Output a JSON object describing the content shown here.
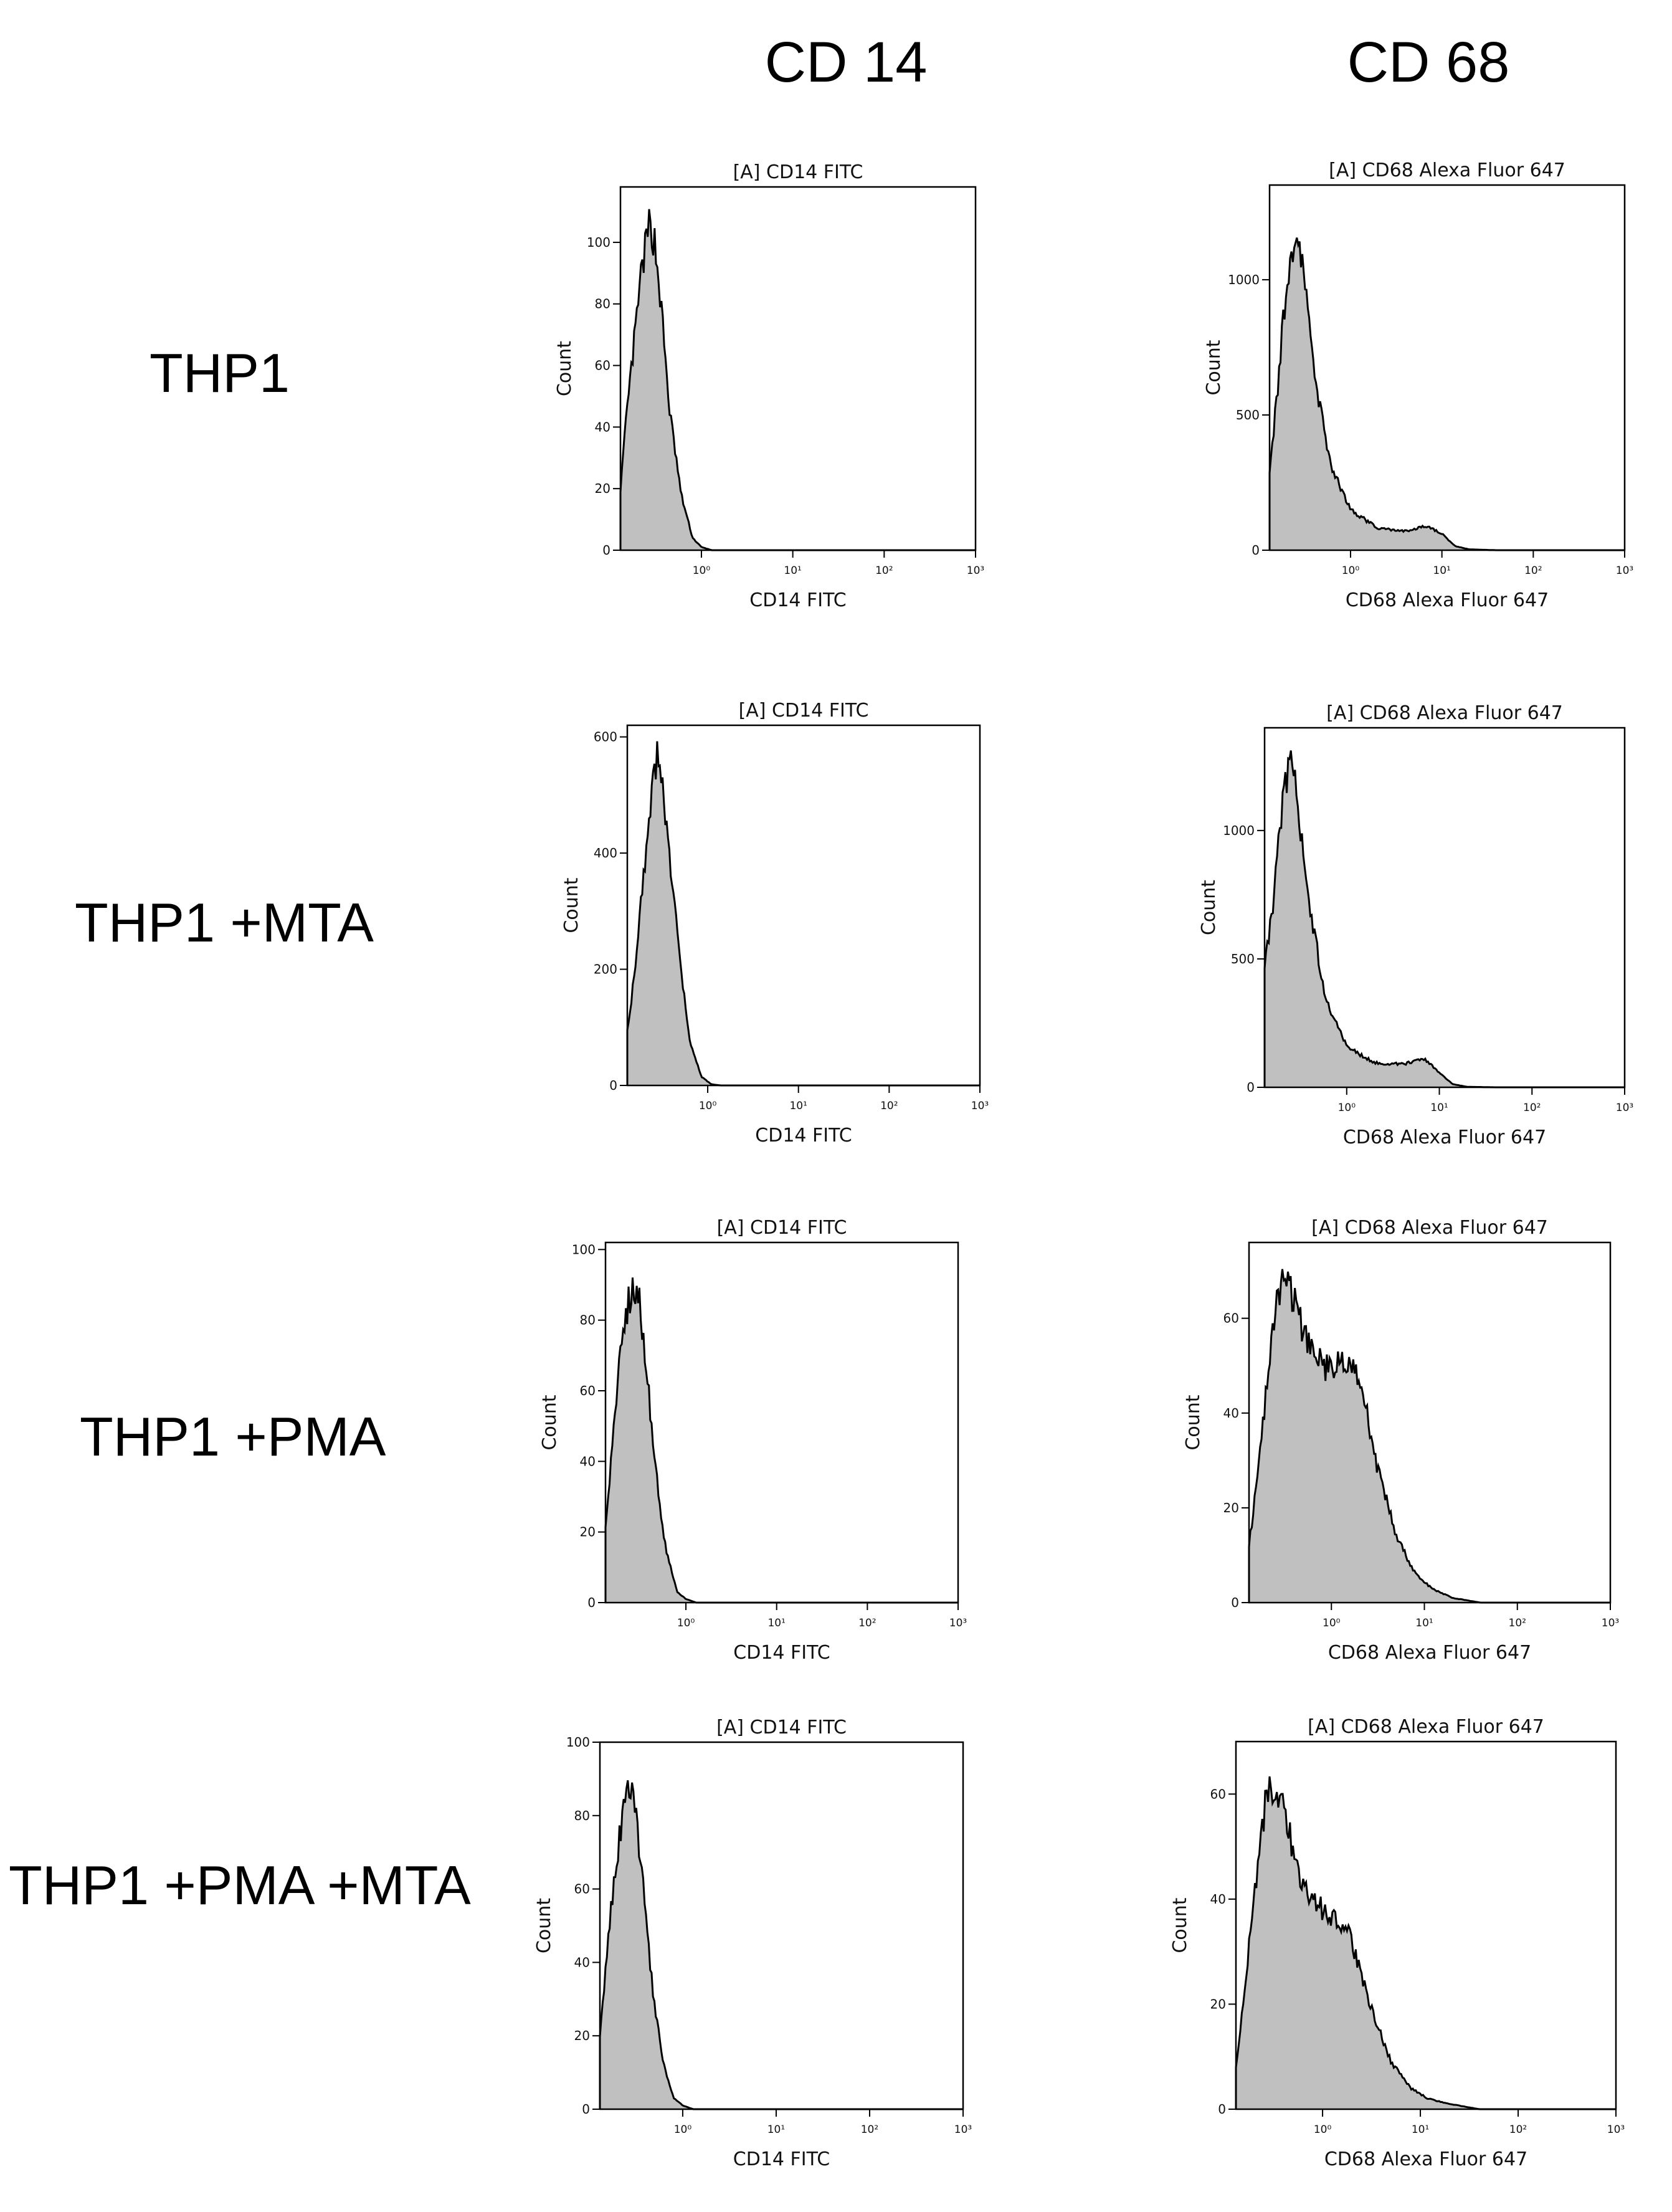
{
  "column_headers": [
    "CD 14",
    "CD 68"
  ],
  "row_labels": [
    "THP1",
    "THP1 +MTA",
    "THP1 +PMA",
    "THP1 +PMA +MTA"
  ],
  "colors": {
    "fill": "#c0c0c0",
    "line": "#000000",
    "frame": "#000000"
  },
  "chart_data": [
    {
      "id": "thp1-cd14",
      "type": "histogram",
      "title": "[A] CD14 FITC",
      "xlabel": "CD14 FITC",
      "ylabel": "Count",
      "xscale": "log",
      "xlim": [
        0.13,
        1000
      ],
      "ylim": [
        0,
        118
      ],
      "yticks": [
        0,
        20,
        40,
        60,
        80,
        100
      ],
      "xticks": [
        {
          "value": 1,
          "label": "10⁰"
        },
        {
          "value": 10,
          "label": "10¹"
        },
        {
          "value": 100,
          "label": "10²"
        },
        {
          "value": 1000,
          "label": "10³"
        }
      ],
      "peak": [
        [
          0.13,
          20
        ],
        [
          0.15,
          42
        ],
        [
          0.18,
          65
        ],
        [
          0.22,
          90
        ],
        [
          0.27,
          106
        ],
        [
          0.31,
          100
        ],
        [
          0.36,
          80
        ],
        [
          0.45,
          45
        ],
        [
          0.6,
          18
        ],
        [
          0.8,
          4
        ],
        [
          1.0,
          1
        ],
        [
          1.3,
          0
        ],
        [
          1000,
          0
        ]
      ]
    },
    {
      "id": "thp1-cd68",
      "type": "histogram",
      "title": "[A] CD68 Alexa Fluor 647",
      "xlabel": "CD68 Alexa Fluor 647",
      "ylabel": "Count",
      "xscale": "log",
      "xlim": [
        0.13,
        1000
      ],
      "ylim": [
        0,
        1350
      ],
      "yticks": [
        0,
        500,
        1000
      ],
      "xticks": [
        {
          "value": 1,
          "label": "10⁰"
        },
        {
          "value": 10,
          "label": "10¹"
        },
        {
          "value": 100,
          "label": "10²"
        },
        {
          "value": 1000,
          "label": "10³"
        }
      ],
      "peak": [
        [
          0.13,
          300
        ],
        [
          0.16,
          600
        ],
        [
          0.2,
          1000
        ],
        [
          0.25,
          1180
        ],
        [
          0.3,
          1050
        ],
        [
          0.4,
          650
        ],
        [
          0.6,
          320
        ],
        [
          1.0,
          150
        ],
        [
          2.0,
          80
        ],
        [
          4.0,
          70
        ],
        [
          7.0,
          90
        ],
        [
          10,
          60
        ],
        [
          14,
          15
        ],
        [
          20,
          3
        ],
        [
          40,
          0
        ],
        [
          1000,
          0
        ]
      ]
    },
    {
      "id": "mta-cd14",
      "type": "histogram",
      "title": "[A] CD14 FITC",
      "xlabel": "CD14 FITC",
      "ylabel": "Count",
      "xscale": "log",
      "xlim": [
        0.13,
        1000
      ],
      "ylim": [
        0,
        620
      ],
      "yticks": [
        0,
        200,
        400,
        600
      ],
      "xticks": [
        {
          "value": 1,
          "label": "10⁰"
        },
        {
          "value": 10,
          "label": "10¹"
        },
        {
          "value": 100,
          "label": "10²"
        },
        {
          "value": 1000,
          "label": "10³"
        }
      ],
      "peak": [
        [
          0.13,
          100
        ],
        [
          0.16,
          200
        ],
        [
          0.2,
          380
        ],
        [
          0.25,
          540
        ],
        [
          0.28,
          570
        ],
        [
          0.33,
          500
        ],
        [
          0.4,
          360
        ],
        [
          0.5,
          200
        ],
        [
          0.65,
          70
        ],
        [
          0.85,
          15
        ],
        [
          1.1,
          2
        ],
        [
          1.4,
          0
        ],
        [
          1000,
          0
        ]
      ]
    },
    {
      "id": "mta-cd68",
      "type": "histogram",
      "title": "[A] CD68 Alexa Fluor 647",
      "xlabel": "CD68 Alexa Fluor 647",
      "ylabel": "Count",
      "xscale": "log",
      "xlim": [
        0.13,
        1000
      ],
      "ylim": [
        0,
        1400
      ],
      "yticks": [
        0,
        500,
        1000
      ],
      "xticks": [
        {
          "value": 1,
          "label": "10⁰"
        },
        {
          "value": 10,
          "label": "10¹"
        },
        {
          "value": 100,
          "label": "10²"
        },
        {
          "value": 1000,
          "label": "10³"
        }
      ],
      "peak": [
        [
          0.13,
          480
        ],
        [
          0.16,
          700
        ],
        [
          0.2,
          1100
        ],
        [
          0.25,
          1260
        ],
        [
          0.3,
          1100
        ],
        [
          0.4,
          700
        ],
        [
          0.6,
          330
        ],
        [
          1.0,
          160
        ],
        [
          2.0,
          95
        ],
        [
          4.0,
          90
        ],
        [
          7.0,
          110
        ],
        [
          10,
          55
        ],
        [
          14,
          12
        ],
        [
          20,
          2
        ],
        [
          40,
          0
        ],
        [
          1000,
          0
        ]
      ]
    },
    {
      "id": "pma-cd14",
      "type": "histogram",
      "title": "[A] CD14 FITC",
      "xlabel": "CD14 FITC",
      "ylabel": "Count",
      "xscale": "log",
      "xlim": [
        0.13,
        1000
      ],
      "ylim": [
        0,
        102
      ],
      "yticks": [
        0,
        20,
        40,
        60,
        80,
        100
      ],
      "xticks": [
        {
          "value": 1,
          "label": "10⁰"
        },
        {
          "value": 10,
          "label": "10¹"
        },
        {
          "value": 100,
          "label": "10²"
        },
        {
          "value": 1000,
          "label": "10³"
        }
      ],
      "peak": [
        [
          0.13,
          22
        ],
        [
          0.15,
          40
        ],
        [
          0.18,
          65
        ],
        [
          0.21,
          80
        ],
        [
          0.26,
          90
        ],
        [
          0.3,
          88
        ],
        [
          0.36,
          70
        ],
        [
          0.45,
          40
        ],
        [
          0.6,
          15
        ],
        [
          0.8,
          3
        ],
        [
          1.0,
          1
        ],
        [
          1.3,
          0
        ],
        [
          1000,
          0
        ]
      ]
    },
    {
      "id": "pma-cd68",
      "type": "histogram",
      "title": "[A] CD68 Alexa Fluor 647",
      "xlabel": "CD68 Alexa Fluor 647",
      "ylabel": "Count",
      "xscale": "log",
      "xlim": [
        0.13,
        1000
      ],
      "ylim": [
        0,
        76
      ],
      "yticks": [
        0,
        20,
        40,
        60
      ],
      "xticks": [
        {
          "value": 1,
          "label": "10⁰"
        },
        {
          "value": 10,
          "label": "10¹"
        },
        {
          "value": 100,
          "label": "10²"
        },
        {
          "value": 1000,
          "label": "10³"
        }
      ],
      "peak": [
        [
          0.13,
          12
        ],
        [
          0.15,
          22
        ],
        [
          0.2,
          45
        ],
        [
          0.26,
          64
        ],
        [
          0.32,
          68
        ],
        [
          0.42,
          62
        ],
        [
          0.6,
          53
        ],
        [
          0.8,
          50
        ],
        [
          1.0,
          49
        ],
        [
          1.4,
          52
        ],
        [
          2.0,
          48
        ],
        [
          3.0,
          30
        ],
        [
          5.0,
          14
        ],
        [
          8.0,
          6
        ],
        [
          12,
          3
        ],
        [
          20,
          1
        ],
        [
          40,
          0
        ],
        [
          1000,
          0
        ]
      ]
    },
    {
      "id": "pmamta-cd14",
      "type": "histogram",
      "title": "[A] CD14 FITC",
      "xlabel": "CD14 FITC",
      "ylabel": "Count",
      "xscale": "log",
      "xlim": [
        0.13,
        1000
      ],
      "ylim": [
        0,
        100
      ],
      "yticks": [
        0,
        20,
        40,
        60,
        80,
        100
      ],
      "xticks": [
        {
          "value": 1,
          "label": "10⁰"
        },
        {
          "value": 10,
          "label": "10¹"
        },
        {
          "value": 100,
          "label": "10²"
        },
        {
          "value": 1000,
          "label": "10³"
        }
      ],
      "peak": [
        [
          0.13,
          20
        ],
        [
          0.15,
          38
        ],
        [
          0.18,
          60
        ],
        [
          0.22,
          78
        ],
        [
          0.27,
          88
        ],
        [
          0.31,
          82
        ],
        [
          0.37,
          62
        ],
        [
          0.45,
          38
        ],
        [
          0.6,
          14
        ],
        [
          0.8,
          3
        ],
        [
          1.0,
          1
        ],
        [
          1.3,
          0
        ],
        [
          1000,
          0
        ]
      ]
    },
    {
      "id": "pmamta-cd68",
      "type": "histogram",
      "title": "[A] CD68 Alexa Fluor 647",
      "xlabel": "CD68 Alexa Fluor 647",
      "ylabel": "Count",
      "xscale": "log",
      "xlim": [
        0.13,
        1000
      ],
      "ylim": [
        0,
        70
      ],
      "yticks": [
        0,
        20,
        40,
        60
      ],
      "xticks": [
        {
          "value": 1,
          "label": "10⁰"
        },
        {
          "value": 10,
          "label": "10¹"
        },
        {
          "value": 100,
          "label": "10²"
        },
        {
          "value": 1000,
          "label": "10³"
        }
      ],
      "peak": [
        [
          0.13,
          8
        ],
        [
          0.15,
          18
        ],
        [
          0.2,
          40
        ],
        [
          0.26,
          58
        ],
        [
          0.32,
          62
        ],
        [
          0.42,
          55
        ],
        [
          0.6,
          44
        ],
        [
          0.8,
          40
        ],
        [
          1.0,
          38
        ],
        [
          1.5,
          36
        ],
        [
          2.0,
          32
        ],
        [
          3.0,
          20
        ],
        [
          5.0,
          9
        ],
        [
          8.0,
          4
        ],
        [
          12,
          2
        ],
        [
          20,
          1
        ],
        [
          40,
          0
        ],
        [
          1000,
          0
        ]
      ]
    }
  ]
}
